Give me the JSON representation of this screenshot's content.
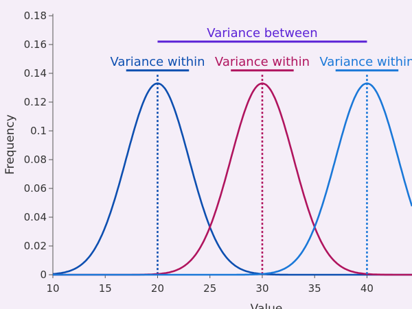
{
  "chart_data": {
    "type": "line",
    "title": "",
    "xlabel": "Value",
    "ylabel": "Frequency",
    "xlim": [
      10,
      44.3
    ],
    "ylim": [
      0,
      0.18
    ],
    "xticks": [
      10,
      15,
      20,
      25,
      30,
      35,
      40
    ],
    "xtick_labels": [
      "10",
      "15",
      "20",
      "25",
      "30",
      "35",
      "40"
    ],
    "yticks": [
      0,
      0.02,
      0.04,
      0.06,
      0.08,
      0.1,
      0.12,
      0.14,
      0.16,
      0.18
    ],
    "ytick_labels": [
      "0",
      "0.02",
      "0.04",
      "0.06",
      "0.08",
      "0.1",
      "0.12",
      "0.14",
      "0.16",
      "0.18"
    ],
    "grid": false,
    "series": [
      {
        "mean": 20,
        "sd": 3,
        "color": "#0d4fb0"
      },
      {
        "mean": 30,
        "sd": 3,
        "color": "#b0145e"
      },
      {
        "mean": 40,
        "sd": 3,
        "color": "#1a78d8"
      }
    ],
    "annotations": [
      {
        "text": "Variance between",
        "color": "#5b22d6",
        "x_start": 20,
        "x_end": 40,
        "y": 0.162
      },
      {
        "text": "Variance within",
        "color": "#0d4fb0",
        "x_start": 17,
        "x_end": 23,
        "y": 0.142
      },
      {
        "text": "Variance within",
        "color": "#b0145e",
        "x_start": 27,
        "x_end": 33,
        "y": 0.142
      },
      {
        "text": "Variance within",
        "color": "#1a78d8",
        "x_start": 37,
        "x_end": 43,
        "y": 0.142
      }
    ]
  }
}
